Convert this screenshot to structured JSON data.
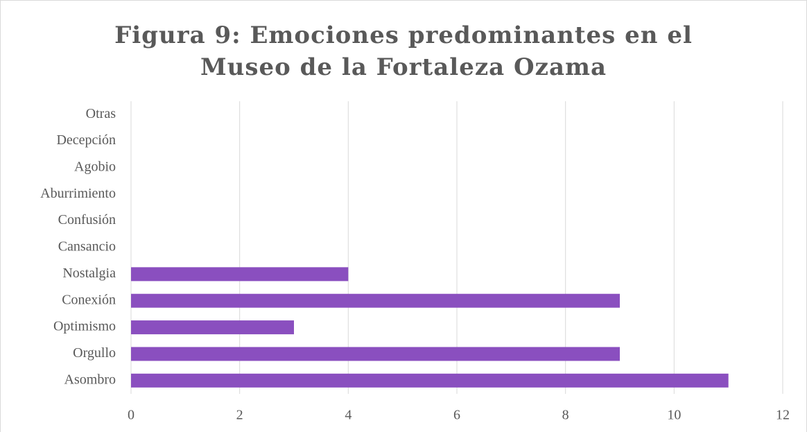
{
  "chart_data": {
    "type": "barh",
    "title": "Figura 9: Emociones predominantes en el Museo de la Fortaleza Ozama",
    "categories": [
      "Otras",
      "Decepción",
      "Agobio",
      "Aburrimiento",
      "Confusión",
      "Cansancio",
      "Nostalgia",
      "Conexión",
      "Optimismo",
      "Orgullo",
      "Asombro"
    ],
    "values": [
      0,
      0,
      0,
      0,
      0,
      0,
      4,
      9,
      3,
      9,
      11
    ],
    "color": "#8a4fbf",
    "xlim": [
      0,
      12
    ],
    "xticks": [
      0,
      2,
      4,
      6,
      8,
      10,
      12
    ],
    "grid": true
  }
}
